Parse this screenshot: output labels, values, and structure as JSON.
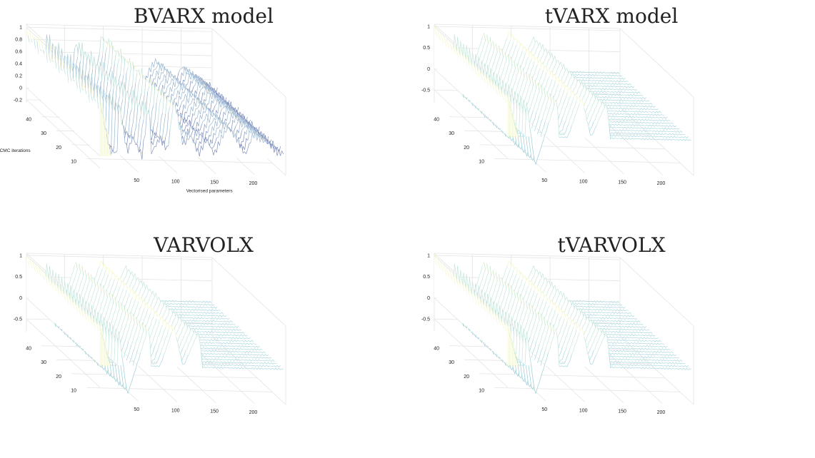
{
  "chart_data": [
    {
      "type": "waterfall-3d",
      "title": "BVARX model",
      "xlabel": "Vectorised parameters",
      "ylabel": "MCMC iterations",
      "x_ticks": [
        "50",
        "100",
        "150",
        "200"
      ],
      "y_ticks": [
        "10",
        "20",
        "30",
        "40"
      ],
      "z_ticks": [
        "1",
        "0.8",
        "0.6",
        "0.4",
        "0.2",
        "0",
        "-0.2"
      ],
      "xlim": [
        1,
        240
      ],
      "ylim": [
        1,
        50
      ],
      "zlim": [
        -0.25,
        1.05
      ],
      "x": [
        1,
        16,
        25,
        26,
        38,
        45,
        57,
        66,
        69,
        80,
        90,
        98,
        110,
        120,
        130,
        140,
        150,
        160,
        168,
        180,
        190,
        200,
        212,
        220,
        232,
        240
      ],
      "z": [
        1.0,
        0.05,
        0.05,
        0.95,
        0.05,
        0.3,
        0.0,
        0.9,
        0.05,
        0.3,
        0.1,
        0.95,
        0.2,
        0.35,
        0.05,
        0.3,
        0.05,
        0.35,
        0.5,
        0.3,
        0.05,
        0.4,
        0.3,
        0.25,
        0.1,
        0.1
      ],
      "colormap": [
        "#f4f7c9",
        "#b9dcd6",
        "#9bb7d0",
        "#7e8fbd"
      ]
    },
    {
      "type": "waterfall-3d",
      "title": "tVARX model",
      "xlabel": "",
      "ylabel": "",
      "x_ticks": [
        "50",
        "100",
        "150",
        "200"
      ],
      "y_ticks": [
        "10",
        "20",
        "30",
        "40"
      ],
      "z_ticks": [
        "1",
        "0.5",
        "0",
        "-0.5"
      ],
      "xlim": [
        1,
        240
      ],
      "ylim": [
        1,
        50
      ],
      "zlim": [
        -0.8,
        1.05
      ],
      "x": [
        1,
        16,
        25,
        26,
        38,
        50,
        66,
        69,
        80,
        98,
        110,
        130,
        135,
        150,
        170,
        185,
        200,
        220,
        240
      ],
      "z": [
        1.0,
        0.0,
        0.0,
        0.95,
        -0.7,
        0.0,
        0.95,
        0.0,
        0.0,
        0.95,
        0.0,
        0.85,
        0.0,
        0.0,
        0.0,
        0.0,
        0.0,
        0.0,
        0.0
      ],
      "colormap": [
        "#f4f7c9",
        "#c7e6dc",
        "#a9d6df",
        "#99cdd8"
      ]
    },
    {
      "type": "waterfall-3d",
      "title": "VARVOLX",
      "xlabel": "",
      "ylabel": "",
      "x_ticks": [
        "50",
        "100",
        "150",
        "200"
      ],
      "y_ticks": [
        "10",
        "20",
        "30",
        "40"
      ],
      "z_ticks": [
        "1",
        "0.5",
        "0",
        "-0.5"
      ],
      "xlim": [
        1,
        240
      ],
      "ylim": [
        1,
        50
      ],
      "zlim": [
        -0.8,
        1.05
      ],
      "x": [
        1,
        16,
        25,
        26,
        38,
        50,
        66,
        69,
        80,
        98,
        110,
        130,
        135,
        150,
        170,
        185,
        200,
        220,
        240
      ],
      "z": [
        1.0,
        0.0,
        0.0,
        0.95,
        -0.7,
        0.0,
        0.95,
        0.0,
        0.0,
        0.95,
        0.0,
        0.85,
        0.0,
        0.0,
        0.0,
        0.0,
        0.0,
        0.0,
        0.0
      ],
      "colormap": [
        "#f4f7c9",
        "#c7e6dc",
        "#a9d6df",
        "#99cdd8"
      ]
    },
    {
      "type": "waterfall-3d",
      "title": "tVARVOLX",
      "xlabel": "",
      "ylabel": "",
      "x_ticks": [
        "50",
        "100",
        "150",
        "200"
      ],
      "y_ticks": [
        "10",
        "20",
        "30",
        "40"
      ],
      "z_ticks": [
        "1",
        "0.5",
        "0",
        "-0.5"
      ],
      "xlim": [
        1,
        240
      ],
      "ylim": [
        1,
        50
      ],
      "zlim": [
        -0.8,
        1.05
      ],
      "x": [
        1,
        16,
        25,
        26,
        38,
        50,
        66,
        69,
        80,
        98,
        110,
        130,
        135,
        150,
        170,
        185,
        200,
        220,
        240
      ],
      "z": [
        1.0,
        0.0,
        0.0,
        0.95,
        -0.7,
        0.0,
        0.95,
        0.0,
        0.0,
        0.95,
        0.0,
        0.85,
        0.0,
        0.0,
        0.0,
        0.0,
        0.0,
        0.0,
        0.0
      ],
      "colormap": [
        "#f4f7c9",
        "#c7e6dc",
        "#a9d6df",
        "#99cdd8"
      ]
    }
  ]
}
